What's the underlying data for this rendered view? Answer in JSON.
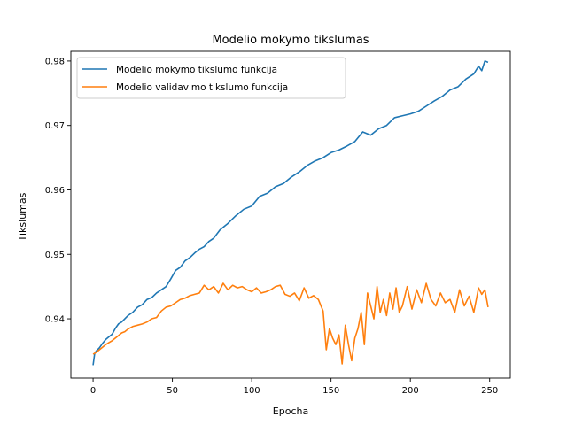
{
  "chart_data": {
    "type": "line",
    "title": "Modelio mokymo tikslumas",
    "xlabel": "Epocha",
    "ylabel": "Tikslumas",
    "xlim": [
      -14,
      263
    ],
    "ylim": [
      0.9308,
      0.9815
    ],
    "xticks": [
      0,
      50,
      100,
      150,
      200,
      250
    ],
    "yticks": [
      0.94,
      0.95,
      0.96,
      0.97,
      0.98
    ],
    "ytick_labels": [
      "0.94",
      "0.95",
      "0.96",
      "0.97",
      "0.98"
    ],
    "grid": false,
    "legend_position": "upper-left",
    "series": [
      {
        "name": "Modelio mokymo tikslumo funkcija",
        "color": "#1f77b4",
        "x": [
          0,
          1,
          2,
          4,
          6,
          8,
          10,
          12,
          14,
          16,
          18,
          20,
          22,
          25,
          28,
          31,
          34,
          37,
          40,
          43,
          46,
          49,
          52,
          55,
          58,
          61,
          64,
          67,
          70,
          73,
          76,
          80,
          85,
          90,
          95,
          100,
          105,
          110,
          115,
          120,
          125,
          130,
          135,
          140,
          145,
          150,
          155,
          160,
          165,
          170,
          175,
          180,
          185,
          190,
          195,
          200,
          205,
          210,
          215,
          220,
          225,
          230,
          235,
          240,
          243,
          245,
          247,
          249
        ],
        "y": [
          0.9328,
          0.9346,
          0.935,
          0.9355,
          0.9362,
          0.9368,
          0.9372,
          0.9376,
          0.9385,
          0.9392,
          0.9395,
          0.94,
          0.9405,
          0.941,
          0.9418,
          0.9422,
          0.943,
          0.9433,
          0.944,
          0.9445,
          0.945,
          0.9462,
          0.9475,
          0.948,
          0.949,
          0.9495,
          0.9502,
          0.9508,
          0.9512,
          0.952,
          0.9525,
          0.9538,
          0.9548,
          0.956,
          0.957,
          0.9575,
          0.959,
          0.9595,
          0.9605,
          0.961,
          0.962,
          0.9628,
          0.9638,
          0.9645,
          0.965,
          0.9658,
          0.9662,
          0.9668,
          0.9675,
          0.969,
          0.9685,
          0.9695,
          0.97,
          0.9712,
          0.9715,
          0.9718,
          0.9722,
          0.973,
          0.9738,
          0.9745,
          0.9755,
          0.976,
          0.9772,
          0.978,
          0.9792,
          0.9785,
          0.98,
          0.9798
        ]
      },
      {
        "name": "Modelio validavimo tikslumo funkcija",
        "color": "#ff7f0e",
        "x": [
          0,
          2,
          4,
          6,
          8,
          10,
          12,
          14,
          16,
          18,
          20,
          22,
          25,
          28,
          31,
          34,
          37,
          40,
          43,
          46,
          49,
          52,
          55,
          58,
          61,
          64,
          67,
          70,
          73,
          76,
          79,
          82,
          85,
          88,
          91,
          94,
          97,
          100,
          103,
          106,
          109,
          112,
          115,
          118,
          121,
          124,
          127,
          130,
          133,
          136,
          139,
          142,
          145,
          147,
          149,
          151,
          153,
          155,
          157,
          159,
          161,
          163,
          165,
          167,
          169,
          171,
          173,
          175,
          177,
          179,
          181,
          183,
          185,
          187,
          189,
          191,
          193,
          195,
          198,
          201,
          204,
          207,
          210,
          213,
          216,
          219,
          222,
          225,
          228,
          231,
          234,
          237,
          240,
          243,
          245,
          247,
          249
        ],
        "y": [
          0.9345,
          0.9348,
          0.9352,
          0.9356,
          0.936,
          0.9363,
          0.9366,
          0.937,
          0.9374,
          0.9378,
          0.938,
          0.9384,
          0.9388,
          0.939,
          0.9392,
          0.9395,
          0.94,
          0.9402,
          0.9412,
          0.9418,
          0.942,
          0.9425,
          0.943,
          0.9432,
          0.9436,
          0.9438,
          0.944,
          0.9452,
          0.9445,
          0.945,
          0.944,
          0.9455,
          0.9445,
          0.9452,
          0.9448,
          0.945,
          0.9445,
          0.9442,
          0.9448,
          0.944,
          0.9442,
          0.9445,
          0.945,
          0.9452,
          0.9438,
          0.9435,
          0.944,
          0.9428,
          0.9448,
          0.9432,
          0.9436,
          0.943,
          0.9412,
          0.9352,
          0.9385,
          0.937,
          0.936,
          0.9375,
          0.933,
          0.939,
          0.936,
          0.9335,
          0.937,
          0.9385,
          0.941,
          0.936,
          0.944,
          0.942,
          0.94,
          0.945,
          0.941,
          0.943,
          0.9405,
          0.944,
          0.9415,
          0.9448,
          0.941,
          0.942,
          0.945,
          0.9415,
          0.9445,
          0.9425,
          0.9455,
          0.943,
          0.942,
          0.944,
          0.9425,
          0.943,
          0.941,
          0.9445,
          0.942,
          0.9435,
          0.941,
          0.9448,
          0.9438,
          0.9445,
          0.9418
        ]
      }
    ]
  }
}
